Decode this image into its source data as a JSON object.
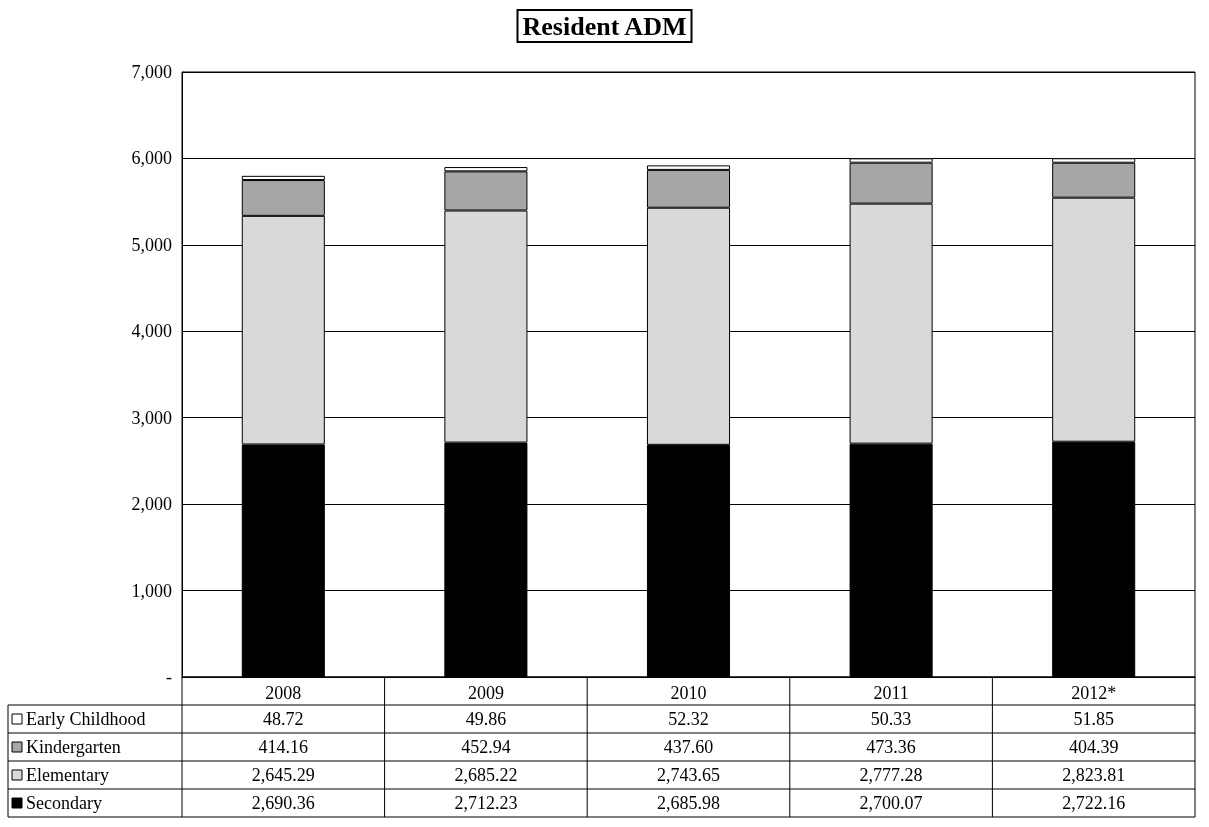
{
  "chart_data": {
    "type": "bar",
    "title": "Resident ADM",
    "stacked": true,
    "categories": [
      "2008",
      "2009",
      "2010",
      "2011",
      "2012*"
    ],
    "series": [
      {
        "name": "Secondary",
        "color": "#000000",
        "values": [
          2690.36,
          2712.23,
          2685.98,
          2700.07,
          2722.16
        ],
        "value_labels": [
          "2,690.36",
          "2,712.23",
          "2,685.98",
          "2,700.07",
          "2,722.16"
        ]
      },
      {
        "name": "Elementary",
        "color": "#d9d9d9",
        "values": [
          2645.29,
          2685.22,
          2743.65,
          2777.28,
          2823.81
        ],
        "value_labels": [
          "2,645.29",
          "2,685.22",
          "2,743.65",
          "2,777.28",
          "2,823.81"
        ]
      },
      {
        "name": "Kindergarten",
        "color": "#a6a6a6",
        "values": [
          414.16,
          452.94,
          437.6,
          473.36,
          404.39
        ],
        "value_labels": [
          "414.16",
          "452.94",
          "437.60",
          "473.36",
          "404.39"
        ]
      },
      {
        "name": "Early Childhood",
        "color": "#ffffff",
        "values": [
          48.72,
          49.86,
          52.32,
          50.33,
          51.85
        ],
        "value_labels": [
          "48.72",
          "49.86",
          "52.32",
          "50.33",
          "51.85"
        ]
      }
    ],
    "ylim": [
      0,
      7000
    ],
    "yticks": [
      {
        "value": 0,
        "label": "-"
      },
      {
        "value": 1000,
        "label": "1,000"
      },
      {
        "value": 2000,
        "label": "2,000"
      },
      {
        "value": 3000,
        "label": "3,000"
      },
      {
        "value": 4000,
        "label": "4,000"
      },
      {
        "value": 5000,
        "label": "5,000"
      },
      {
        "value": 6000,
        "label": "6,000"
      },
      {
        "value": 7000,
        "label": "7,000"
      }
    ],
    "grid": "y",
    "legend": "bottom left"
  }
}
